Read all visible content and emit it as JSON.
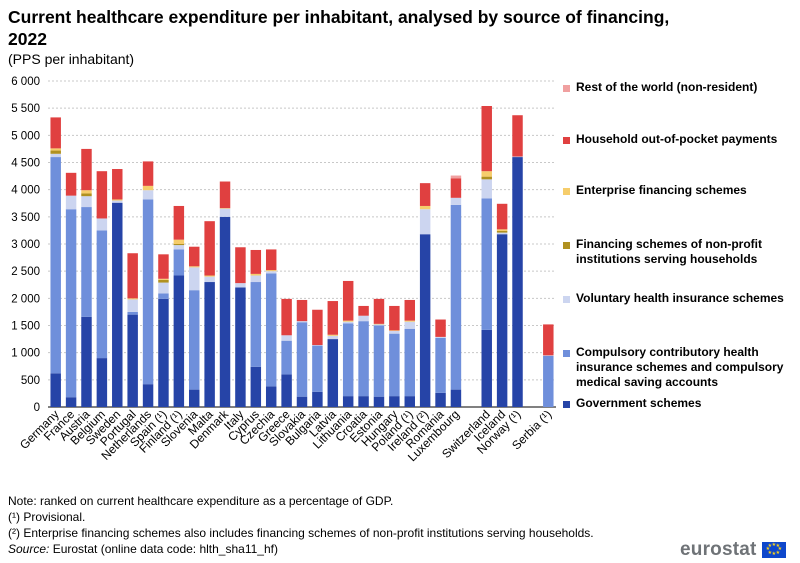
{
  "title": "Current healthcare expenditure per inhabitant, analysed by source of financing, 2022",
  "subtitle": "(PPS per inhabitant)",
  "notes": [
    "Note: ranked on current healthcare expenditure as a percentage of GDP.",
    "(¹) Provisional.",
    "(²) Enterprise financing schemes also includes financing schemes of non-profit institutions serving households."
  ],
  "source_label": "Source:",
  "source_text": " Eurostat (online data code: hlth_sha11_hf)",
  "brand": "eurostat",
  "chart_data": {
    "type": "bar",
    "stacked": true,
    "ylim": [
      0,
      6000
    ],
    "yticks": [
      0,
      500,
      1000,
      1500,
      2000,
      2500,
      3000,
      3500,
      4000,
      4500,
      5000,
      5500,
      6000
    ],
    "ytick_labels": [
      "0",
      "500",
      "1 000",
      "1 500",
      "2 000",
      "2 500",
      "3 000",
      "3 500",
      "4 000",
      "4 500",
      "5 000",
      "5 500",
      "6 000"
    ],
    "grid": true,
    "legend_position": "right",
    "categories": [
      "Germany",
      "France",
      "Austria",
      "Belgium",
      "Sweden",
      "Portugal",
      "Netherlands",
      "Spain (¹)",
      "Finland (¹)",
      "Slovenia",
      "Malta",
      "Denmark",
      "Italy",
      "Cyprus",
      "Czechia",
      "Greece",
      "Slovakia",
      "Bulgaria",
      "Latvia",
      "Lithuania",
      "Croatia",
      "Estonia",
      "Hungary",
      "Poland (¹)",
      "Ireland (²)",
      "Romania",
      "Luxembourg",
      "",
      "Switzerland",
      "Iceland",
      "Norway (¹)",
      "",
      "Serbia (¹)"
    ],
    "series": [
      {
        "name": "Government schemes",
        "color": "#2644a7",
        "values": [
          620,
          180,
          1660,
          900,
          3760,
          1700,
          420,
          1990,
          2420,
          320,
          2300,
          3500,
          2200,
          740,
          380,
          600,
          190,
          280,
          1250,
          200,
          200,
          190,
          200,
          200,
          3180,
          260,
          320,
          null,
          1420,
          3180,
          4600,
          null,
          0
        ]
      },
      {
        "name": "Compulsory contributory health insurance schemes and compulsory medical saving accounts",
        "color": "#6f8fdb",
        "values": [
          3980,
          3460,
          2020,
          2350,
          0,
          50,
          3400,
          100,
          480,
          1830,
          0,
          0,
          0,
          1560,
          2080,
          620,
          1370,
          850,
          0,
          1340,
          1380,
          1310,
          1150,
          1240,
          0,
          1010,
          3400,
          null,
          2420,
          0,
          0,
          null,
          940
        ]
      },
      {
        "name": "Voluntary health insurance schemes",
        "color": "#ccd5f0",
        "values": [
          60,
          250,
          200,
          220,
          40,
          230,
          170,
          200,
          80,
          420,
          100,
          150,
          80,
          120,
          40,
          100,
          20,
          10,
          60,
          30,
          100,
          20,
          50,
          130,
          460,
          20,
          130,
          null,
          350,
          30,
          10,
          null,
          10
        ]
      },
      {
        "name": "Financing schemes of non-profit institutions serving households",
        "color": "#b09120",
        "values": [
          60,
          0,
          50,
          0,
          0,
          0,
          0,
          50,
          20,
          0,
          0,
          0,
          0,
          0,
          0,
          0,
          0,
          0,
          0,
          0,
          0,
          0,
          0,
          0,
          0,
          0,
          0,
          null,
          50,
          30,
          0,
          null,
          0
        ]
      },
      {
        "name": "Enterprise financing schemes",
        "color": "#f6cd6b",
        "values": [
          40,
          0,
          60,
          0,
          20,
          20,
          80,
          20,
          80,
          20,
          20,
          10,
          0,
          30,
          20,
          0,
          0,
          0,
          20,
          20,
          0,
          10,
          10,
          20,
          60,
          0,
          0,
          null,
          100,
          30,
          0,
          null,
          0
        ]
      },
      {
        "name": "Household out-of-pocket payments",
        "color": "#e04040",
        "values": [
          570,
          420,
          760,
          870,
          560,
          830,
          450,
          450,
          620,
          360,
          1000,
          490,
          660,
          440,
          380,
          670,
          390,
          650,
          620,
          730,
          180,
          460,
          450,
          380,
          420,
          320,
          360,
          null,
          1200,
          470,
          760,
          null,
          570
        ]
      },
      {
        "name": "Rest of the world (non-resident)",
        "color": "#f0a0a0",
        "values": [
          0,
          0,
          0,
          0,
          0,
          0,
          0,
          0,
          0,
          0,
          0,
          0,
          0,
          0,
          0,
          0,
          0,
          0,
          0,
          0,
          0,
          0,
          0,
          0,
          0,
          0,
          50,
          null,
          0,
          0,
          0,
          null,
          0
        ]
      }
    ]
  },
  "legend": [
    {
      "label": "Rest of the world (non-resident)",
      "color": "#f0a0a0"
    },
    {
      "label": "Household out-of-pocket payments",
      "color": "#e04040"
    },
    {
      "label": "Enterprise financing schemes",
      "color": "#f6cd6b"
    },
    {
      "label": "Financing schemes of non-profit institutions serving households",
      "color": "#b09120"
    },
    {
      "label": "Voluntary health insurance schemes",
      "color": "#ccd5f0"
    },
    {
      "label": "Compulsory contributory health insurance schemes and compulsory medical saving accounts",
      "color": "#6f8fdb"
    },
    {
      "label": "Government schemes",
      "color": "#2644a7"
    }
  ]
}
